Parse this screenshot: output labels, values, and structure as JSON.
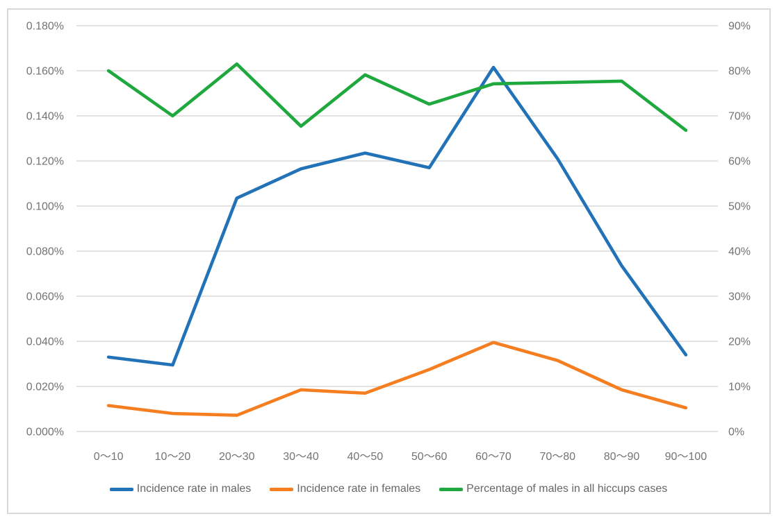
{
  "figure": {
    "background": "#FFFFFF",
    "border_color": "#D9D9D9",
    "gridline_color": "#D9D9D9",
    "axis_text_color": "#737373",
    "legend_text_color": "#666666"
  },
  "chart_data": {
    "type": "line",
    "title": "",
    "xlabel": "",
    "ylabel_left": "",
    "ylabel_right": "",
    "grid": true,
    "legend_position": "bottom",
    "categories": [
      "0～10",
      "10～20",
      "20～30",
      "30～40",
      "40～50",
      "50～60",
      "60～70",
      "70～80",
      "80～90",
      "90～100"
    ],
    "series": [
      {
        "name": "Incidence rate in males",
        "axis": "left",
        "color": "#2272B8",
        "values": [
          0.033,
          0.0295,
          0.1035,
          0.1165,
          0.1235,
          0.117,
          0.1615,
          0.121,
          0.0735,
          0.034
        ]
      },
      {
        "name": "Incidence rate in females",
        "axis": "left",
        "color": "#F57E20",
        "values": [
          0.0115,
          0.008,
          0.0072,
          0.0185,
          0.017,
          0.0275,
          0.0395,
          0.0315,
          0.0185,
          0.0105
        ]
      },
      {
        "name": "Percentage of males in all hiccups cases",
        "axis": "right",
        "color": "#1FA83D",
        "values": [
          80,
          70,
          81.5,
          67.7,
          79.1,
          72.6,
          77.1,
          77.4,
          77.7,
          66.8
        ]
      }
    ],
    "left_axis": {
      "min": 0,
      "max": 0.18,
      "step": 0.02,
      "unit": "%",
      "tick_labels": [
        "0.000%",
        "0.020%",
        "0.040%",
        "0.060%",
        "0.080%",
        "0.100%",
        "0.120%",
        "0.140%",
        "0.160%",
        "0.180%"
      ]
    },
    "right_axis": {
      "min": 0,
      "max": 90,
      "step": 10,
      "unit": "%",
      "tick_labels": [
        "0%",
        "10%",
        "20%",
        "30%",
        "40%",
        "50%",
        "60%",
        "70%",
        "80%",
        "90%"
      ]
    }
  }
}
